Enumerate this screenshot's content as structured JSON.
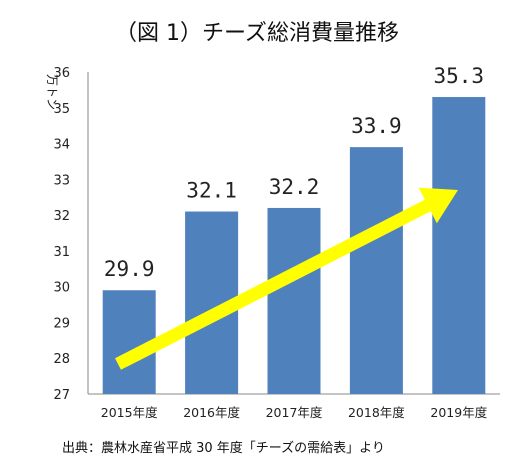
{
  "chart_data": {
    "type": "bar",
    "title": "（図 1）チーズ総消費量推移",
    "ylabel": "万トン",
    "xlabel": "",
    "categories": [
      "2015年度",
      "2016年度",
      "2017年度",
      "2018年度",
      "2019年度"
    ],
    "values": [
      29.9,
      32.1,
      32.2,
      33.9,
      35.3
    ],
    "data_labels": [
      "29.9",
      "32.1",
      "32.2",
      "33.9",
      "35.3"
    ],
    "ylim": [
      27,
      36
    ],
    "yticks": [
      27,
      28,
      29,
      30,
      31,
      32,
      33,
      34,
      35,
      36
    ],
    "grid": false,
    "legend": "none",
    "bar_color": "#4f81bd",
    "trend_arrow_color": "#ffff00",
    "source": "出典：農林水産省平成 30 年度「チーズの需給表」より"
  }
}
